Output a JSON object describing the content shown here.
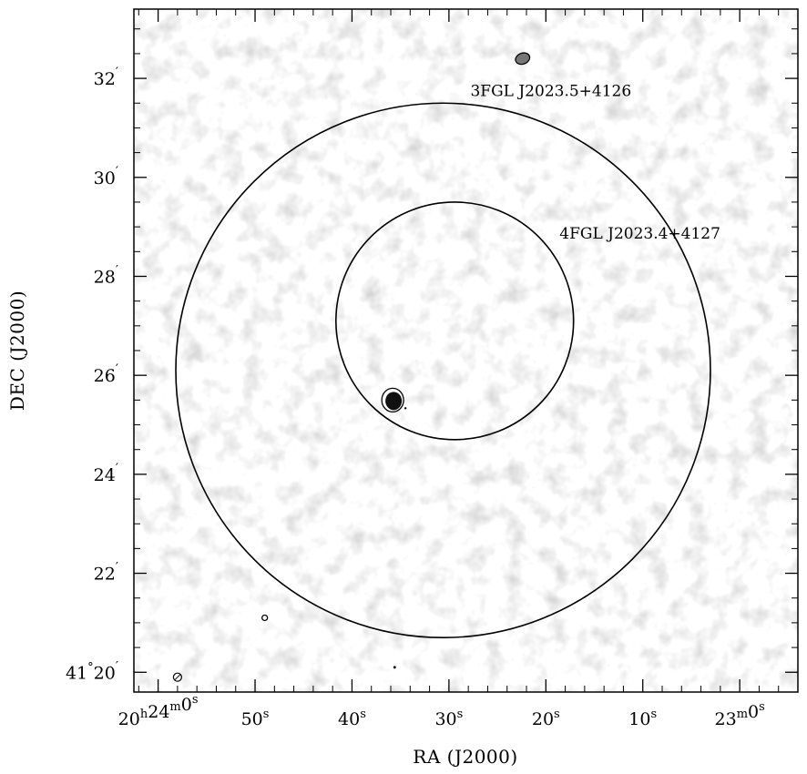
{
  "chart_data": {
    "type": "heatmap",
    "description_visible": "grayscale radio continuum image with contours",
    "xlabel": "RA (J2000)",
    "ylabel": "DEC (J2000)",
    "xlim_seconds_offset": [
      62.5,
      -6.0
    ],
    "ylim_arcmin": [
      19.6,
      33.4
    ],
    "x_ticks": [
      {
        "value": 60,
        "h": "20",
        "m": "24",
        "s": "0"
      },
      {
        "value": 50,
        "s": "50"
      },
      {
        "value": 40,
        "s": "40"
      },
      {
        "value": 30,
        "s": "30"
      },
      {
        "value": 20,
        "s": "20"
      },
      {
        "value": 10,
        "s": "10"
      },
      {
        "value": 0,
        "h": "",
        "m": "23",
        "s": "0"
      }
    ],
    "y_ticks": [
      {
        "value": 20,
        "deg": "41",
        "arcmin": "20"
      },
      {
        "value": 22,
        "arcmin": "22"
      },
      {
        "value": 24,
        "arcmin": "24"
      },
      {
        "value": 26,
        "arcmin": "26"
      },
      {
        "value": 28,
        "arcmin": "28"
      },
      {
        "value": 30,
        "arcmin": "30"
      },
      {
        "value": 32,
        "arcmin": "32"
      }
    ],
    "circles": [
      {
        "name": "3FGL J2023.5+4126",
        "center_ra_s": 30.6,
        "center_dec_arcmin": 26.1,
        "radius_arcmin": 5.4,
        "label": "3FGL J2023.5+4126"
      },
      {
        "name": "4FGL J2023.4+4127",
        "center_ra_s": 29.4,
        "center_dec_arcmin": 27.1,
        "radius_arcmin": 2.4,
        "label": "4FGL J2023.4+4127"
      }
    ],
    "sources": [
      {
        "ra_s": 35.8,
        "dec_arcmin": 25.5,
        "kind": "bright-compact"
      },
      {
        "ra_s": 22.4,
        "dec_arcmin": 32.4,
        "kind": "compact"
      },
      {
        "ra_s": 49.0,
        "dec_arcmin": 21.1,
        "kind": "faint"
      },
      {
        "ra_s": 35.6,
        "dec_arcmin": 20.1,
        "kind": "point"
      },
      {
        "ra_s": 58.0,
        "dec_arcmin": 19.9,
        "kind": "beam"
      }
    ]
  },
  "colors": {
    "background": "#ffffff",
    "frame": "#000000",
    "noise": "#7a7a7a"
  }
}
